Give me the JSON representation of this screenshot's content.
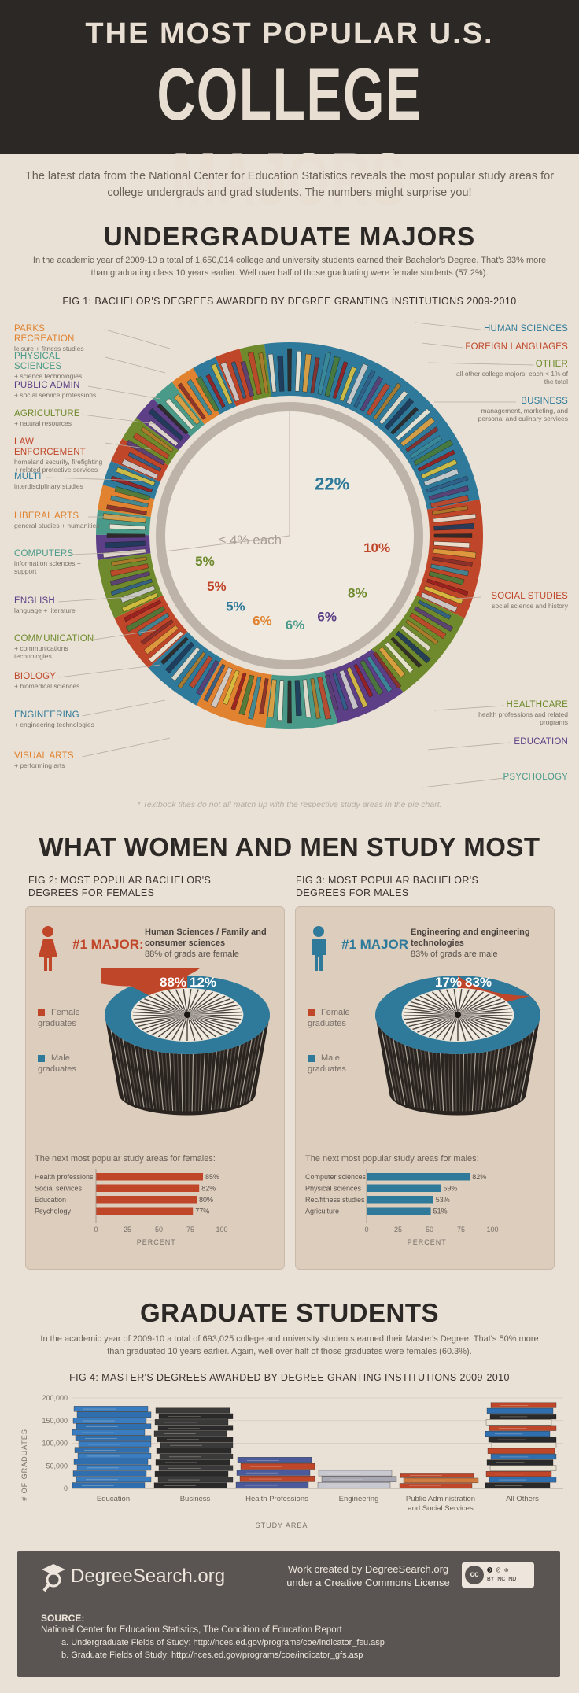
{
  "header": {
    "line1": "THE MOST POPULAR U.S.",
    "line2": "COLLEGE MAJORS"
  },
  "intro": "The latest data from the National Center for Education Statistics reveals the most popular study areas for college undergrads and grad students. The numbers might surprise you!",
  "undergrad": {
    "title": "UNDERGRADUATE MAJORS",
    "desc": "In the academic year of 2009-10 a total of 1,650,014 college and university students earned their Bachelor's Degree. That's 33% more than graduating class 10 years earlier. Well over half of those graduating were female students (57.2%).",
    "fig_title": "FIG 1: BACHELOR'S DEGREES AWARDED BY DEGREE GRANTING INSTITUTIONS 2009-2010",
    "small_note": "≤ 4% each",
    "pct_labels": [
      "22%",
      "10%",
      "8%",
      "6%",
      "6%",
      "6%",
      "5%",
      "5%",
      "5%"
    ],
    "footnote": "* Textbook titles do not all match up with the respective study areas in the pie chart.",
    "left_labels": [
      {
        "t": "PARKS RECREATION",
        "s": "leisure + fitness studies",
        "color": "#e0822f"
      },
      {
        "t": "PHYSICAL SCIENCES",
        "s": "+ science technologies",
        "color": "#4a9a8a"
      },
      {
        "t": "PUBLIC ADMIN",
        "s": "+ social service professions",
        "color": "#5c3f86"
      },
      {
        "t": "AGRICULTURE",
        "s": "+ natural resources",
        "color": "#6e8a2c"
      },
      {
        "t": "LAW ENFORCEMENT",
        "s": "homeland security, firefighting + related protective services",
        "color": "#c0462a"
      },
      {
        "t": "MULTI",
        "s": "interdisciplinary studies",
        "color": "#2f7a9a"
      },
      {
        "t": "LIBERAL ARTS",
        "s": "general studies + humanities",
        "color": "#e0822f"
      },
      {
        "t": "COMPUTERS",
        "s": "information sciences + support",
        "color": "#4a9a8a"
      },
      {
        "t": "ENGLISH",
        "s": "language + literature",
        "color": "#5c3f86"
      },
      {
        "t": "COMMUNICATION",
        "s": "+ communications technologies",
        "color": "#6e8a2c"
      },
      {
        "t": "BIOLOGY",
        "s": "+ biomedical sciences",
        "color": "#c0462a"
      },
      {
        "t": "ENGINEERING",
        "s": "+ engineering technologies",
        "color": "#2f7a9a"
      },
      {
        "t": "VISUAL ARTS",
        "s": "+ performing arts",
        "color": "#e0822f"
      }
    ],
    "right_labels": [
      {
        "t": "HUMAN SCIENCES",
        "s": "",
        "color": "#2f7a9a"
      },
      {
        "t": "FOREIGN LANGUAGES",
        "s": "",
        "color": "#c0462a"
      },
      {
        "t": "OTHER",
        "s": "all other college majors, each < 1% of the total",
        "color": "#6e8a2c"
      },
      {
        "t": "BUSINESS",
        "s": "management, marketing, and personal and culinary services",
        "color": "#2f7a9a"
      },
      {
        "t": "SOCIAL STUDIES",
        "s": "social science and history",
        "color": "#c0462a"
      },
      {
        "t": "HEALTHCARE",
        "s": "health professions and related programs",
        "color": "#6e8a2c"
      },
      {
        "t": "EDUCATION",
        "s": "",
        "color": "#5c3f86"
      },
      {
        "t": "PSYCHOLOGY",
        "s": "",
        "color": "#4a9a8a"
      }
    ]
  },
  "women_men": {
    "title": "WHAT WOMEN AND MEN STUDY MOST",
    "fig2_title": "FIG 2: MOST POPULAR BACHELOR'S DEGREES FOR FEMALES",
    "fig3_title": "FIG 3: MOST POPULAR BACHELOR'S DEGREES FOR MALES",
    "female": {
      "major_label": "#1 MAJOR:",
      "major_name": "Human Sciences / Family and consumer sciences",
      "major_stat": "88% of grads are female",
      "pct_a": "88%",
      "pct_b": "12%",
      "legend_female": "Female graduates",
      "legend_male": "Male graduates",
      "next_title": "The next most popular study areas for females:"
    },
    "male": {
      "major_label": "#1 MAJOR",
      "major_name": "Engineering and engineering technologies",
      "major_stat": "83% of grads are male",
      "pct_a": "17%",
      "pct_b": "83%",
      "legend_female": "Female graduates",
      "legend_male": "Male graduates",
      "next_title": "The next most popular study areas for males:"
    },
    "axis_label": "PERCENT"
  },
  "graduate": {
    "title": "GRADUATE STUDENTS",
    "desc": "In the academic year of 2009-10 a total of 693,025 college and university students earned their Master's Degree. That's 50% more than graduated 10 years earlier. Again, well over half of those graduates were females (60.3%).",
    "fig_title": "FIG 4: MASTER'S DEGREES AWARDED BY DEGREE GRANTING INSTITUTIONS 2009-2010"
  },
  "footer": {
    "brand": "DegreeSearch.org",
    "license": "Work created by DegreeSearch.org under a Creative Commons License",
    "cc_badges": [
      "BY",
      "NC",
      "ND"
    ],
    "source_label": "SOURCE:",
    "source_main": "National Center for Education Statistics, The Condition of Education Report",
    "source_a": "a.  Undergraduate Fields of Study: http://nces.ed.gov/programs/coe/indicator_fsu.asp",
    "source_b": "b.  Graduate Fields of Study: http://nces.ed.gov/programs/coe/indicator_gfs.asp"
  },
  "colors": {
    "female": "#c0462a",
    "male": "#2f7a9a",
    "dark": "#2c2826",
    "bg": "#e9e1d5"
  },
  "chart_data": [
    {
      "type": "pie",
      "title": "FIG 1: BACHELOR'S DEGREES AWARDED BY DEGREE GRANTING INSTITUTIONS 2009-2010",
      "categories": [
        "Business",
        "Social Studies",
        "Healthcare",
        "Education",
        "Psychology",
        "Visual Arts",
        "Engineering",
        "Biology",
        "Communication",
        "Other (≤ 4% each)"
      ],
      "values": [
        22,
        10,
        8,
        6,
        6,
        6,
        5,
        5,
        5,
        27
      ]
    },
    {
      "type": "bar",
      "title": "FIG 2: MOST POPULAR BACHELOR'S DEGREES FOR FEMALES",
      "categories": [
        "Health professions",
        "Social services",
        "Education",
        "Psychology"
      ],
      "values": [
        85,
        82,
        80,
        77
      ],
      "xlabel": "PERCENT",
      "xlim": [
        0,
        100
      ],
      "ticks": [
        0,
        25,
        50,
        75,
        100
      ]
    },
    {
      "type": "bar",
      "title": "FIG 3: MOST POPULAR BACHELOR'S DEGREES FOR MALES",
      "categories": [
        "Computer sciences",
        "Physical sciences",
        "Rec/fitness studies",
        "Agriculture"
      ],
      "values": [
        82,
        59,
        53,
        51
      ],
      "xlabel": "PERCENT",
      "xlim": [
        0,
        100
      ],
      "ticks": [
        0,
        25,
        50,
        75,
        100
      ]
    },
    {
      "type": "bar",
      "title": "FIG 4: MASTER'S DEGREES AWARDED BY DEGREE GRANTING INSTITUTIONS 2009-2010",
      "categories": [
        "Education",
        "Business",
        "Health Professions",
        "Engineering",
        "Public Administration and Social Services",
        "All Others"
      ],
      "values": [
        182000,
        178000,
        69000,
        40000,
        34000,
        190000
      ],
      "ylabel": "# OF GRADUATES",
      "xlabel": "STUDY AREA",
      "ylim": [
        0,
        200000
      ],
      "yticks": [
        "0",
        "50,000",
        "100,000",
        "150,000",
        "200,000"
      ]
    }
  ]
}
